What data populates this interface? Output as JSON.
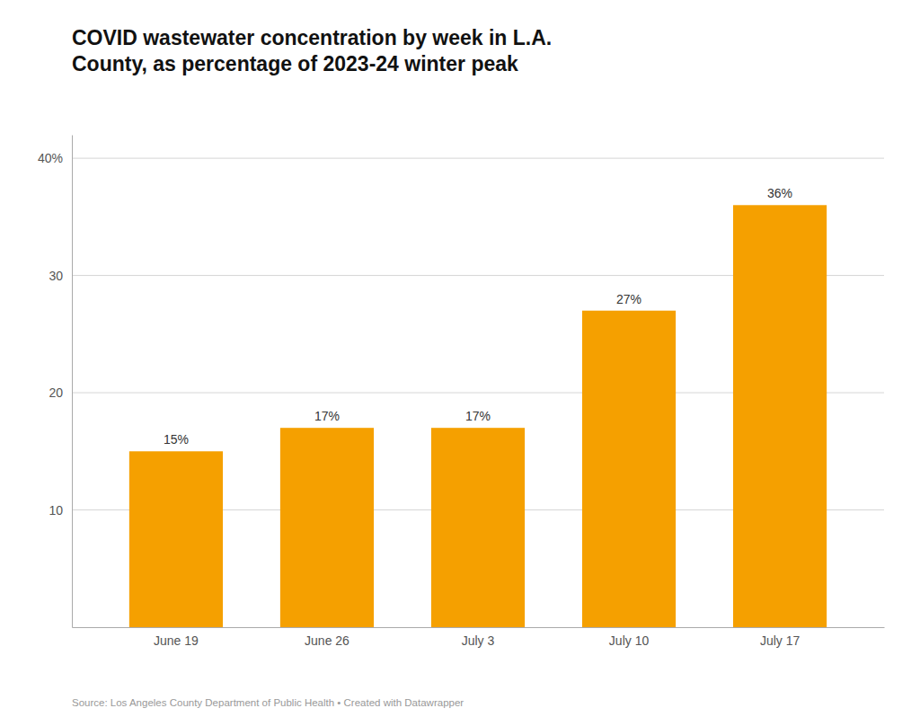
{
  "chart_data": {
    "type": "bar",
    "title": "COVID wastewater concentration by week in L.A.\nCounty, as percentage of 2023-24 winter peak",
    "categories": [
      "June 19",
      "June 26",
      "July 3",
      "July 10",
      "July 17"
    ],
    "values": [
      15,
      17,
      17,
      27,
      36
    ],
    "value_labels": [
      "15%",
      "17%",
      "17%",
      "27%",
      "36%"
    ],
    "data_labels": true,
    "color": "#F5A000",
    "ylim": [
      0,
      42
    ],
    "yticks": [
      10,
      20,
      30,
      {
        "value": 40,
        "label": "40%"
      }
    ],
    "grid": true,
    "source": "Source: Los Angeles County Department of Public Health • Created with Datawrapper"
  }
}
